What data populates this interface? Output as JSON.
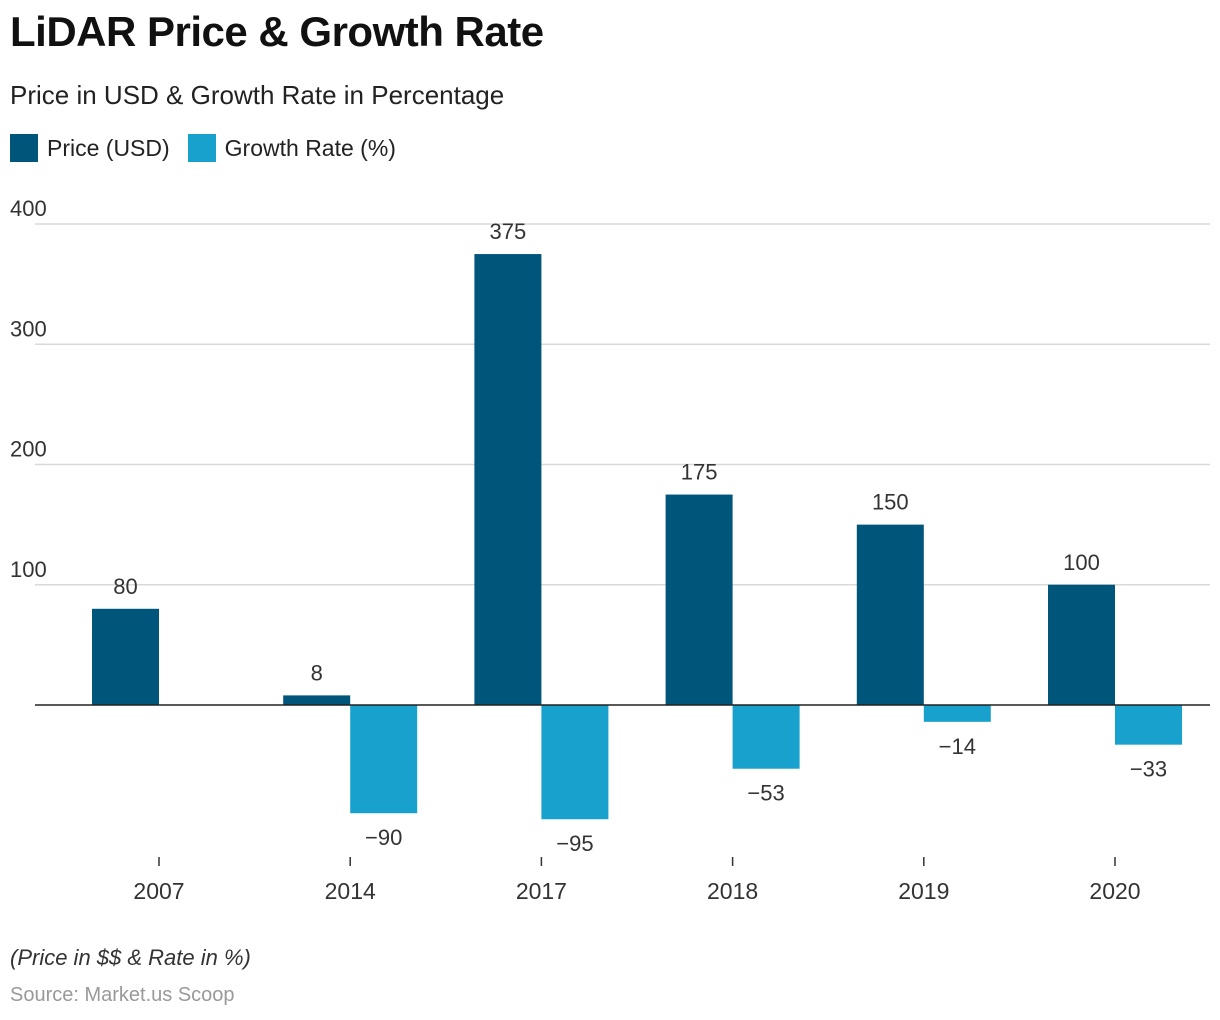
{
  "title": "LiDAR Price & Growth Rate",
  "subtitle": "Price in USD & Growth Rate in Percentage",
  "note": "(Price in $$ & Rate in %)",
  "source": "Source: Market.us Scoop",
  "colors": {
    "price": "#00557b",
    "growth": "#18a1cd",
    "grid": "#d9d9d9",
    "axis": "#222222"
  },
  "chart_data": {
    "type": "bar",
    "title": "LiDAR Price & Growth Rate",
    "subtitle": "Price in USD & Growth Rate in Percentage",
    "xlabel": "",
    "ylabel": "",
    "categories": [
      "2007",
      "2014",
      "2017",
      "2018",
      "2019",
      "2020"
    ],
    "series": [
      {
        "name": "Price (USD)",
        "values": [
          80,
          8,
          375,
          175,
          150,
          100
        ],
        "labels": [
          "80",
          "8",
          "375",
          "175",
          "150",
          "100"
        ]
      },
      {
        "name": "Growth Rate (%)",
        "values": [
          null,
          -90,
          -95,
          -53,
          -14,
          -33
        ],
        "labels": [
          "",
          "−90",
          "−95",
          "−53",
          "−14",
          "−33"
        ]
      }
    ],
    "yticks": [
      100,
      200,
      300,
      400
    ],
    "ylim": [
      -120,
      400
    ],
    "grid": true,
    "legend": "top-left"
  }
}
